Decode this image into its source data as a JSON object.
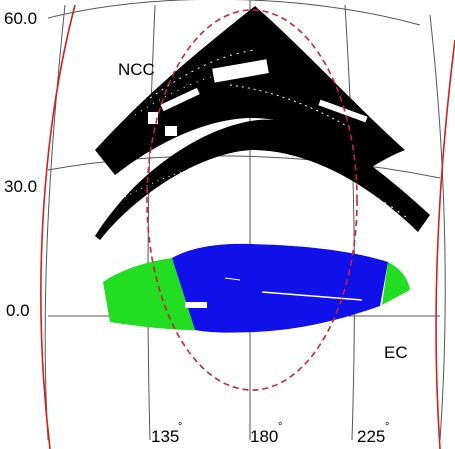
{
  "figure": {
    "dec_labels": [
      "60.0",
      "30.0",
      "0.0"
    ],
    "ra_labels": [
      "135",
      "180",
      "225"
    ],
    "degree_mark": "°",
    "region_labels": {
      "ncc": "NCC",
      "ec": "EC"
    },
    "colors": {
      "ncc_points": "#000000",
      "ec_west_points": "#22dd22",
      "ec_main_points": "#1010e8",
      "grid": "#555555",
      "survey_boundary": "#d02020",
      "footprint_outline": "#cc2233",
      "background": "#ffffff"
    }
  }
}
